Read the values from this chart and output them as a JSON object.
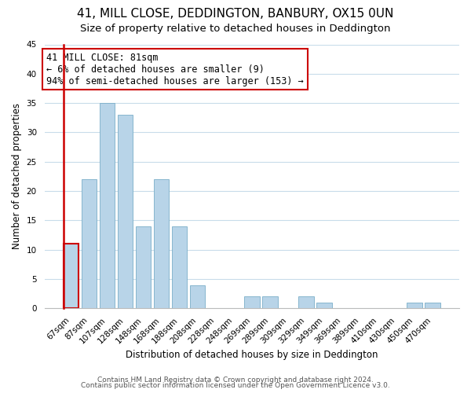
{
  "title": "41, MILL CLOSE, DEDDINGTON, BANBURY, OX15 0UN",
  "subtitle": "Size of property relative to detached houses in Deddington",
  "xlabel": "Distribution of detached houses by size in Deddington",
  "ylabel": "Number of detached properties",
  "bar_labels": [
    "67sqm",
    "87sqm",
    "107sqm",
    "128sqm",
    "148sqm",
    "168sqm",
    "188sqm",
    "208sqm",
    "228sqm",
    "248sqm",
    "269sqm",
    "289sqm",
    "309sqm",
    "329sqm",
    "349sqm",
    "369sqm",
    "389sqm",
    "410sqm",
    "430sqm",
    "450sqm",
    "470sqm"
  ],
  "bar_values": [
    11,
    22,
    35,
    33,
    14,
    22,
    14,
    4,
    0,
    0,
    2,
    2,
    0,
    2,
    1,
    0,
    0,
    0,
    0,
    1,
    1
  ],
  "bar_color": "#b8d4e8",
  "bar_edge_color": "#7aaec8",
  "highlight_bar_index": 0,
  "highlight_color": "#cc0000",
  "ylim": [
    0,
    45
  ],
  "yticks": [
    0,
    5,
    10,
    15,
    20,
    25,
    30,
    35,
    40,
    45
  ],
  "annotation_title": "41 MILL CLOSE: 81sqm",
  "annotation_line1": "← 6% of detached houses are smaller (9)",
  "annotation_line2": "94% of semi-detached houses are larger (153) →",
  "footer_line1": "Contains HM Land Registry data © Crown copyright and database right 2024.",
  "footer_line2": "Contains public sector information licensed under the Open Government Licence v3.0.",
  "background_color": "#ffffff",
  "grid_color": "#c8dcea",
  "title_fontsize": 11,
  "subtitle_fontsize": 9.5,
  "label_fontsize": 8.5,
  "tick_fontsize": 7.5,
  "ann_fontsize": 8.5,
  "footer_fontsize": 6.5
}
